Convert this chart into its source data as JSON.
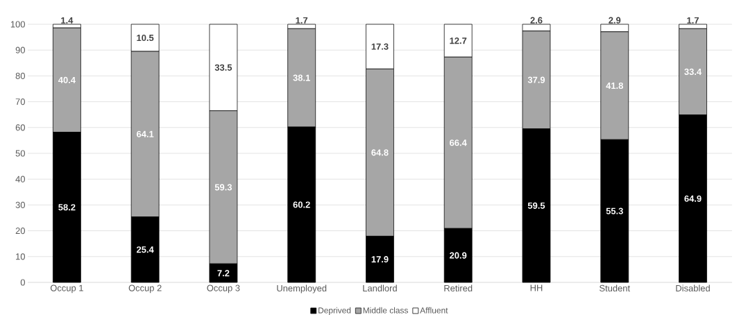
{
  "chart_data": {
    "type": "bar",
    "stacked": true,
    "categories": [
      "Occup 1",
      "Occup 2",
      "Occup 3",
      "Unemployed",
      "Landlord",
      "Retired",
      "HH",
      "Student",
      "Disabled"
    ],
    "series": [
      {
        "name": "Deprived",
        "color": "#000000",
        "values": [
          58.2,
          25.4,
          7.2,
          60.2,
          17.9,
          20.9,
          59.5,
          55.3,
          64.9
        ]
      },
      {
        "name": "Middle class",
        "color": "#a6a6a6",
        "values": [
          40.4,
          64.1,
          59.3,
          38.1,
          64.8,
          66.4,
          37.9,
          41.8,
          33.4
        ]
      },
      {
        "name": "Affluent",
        "color": "#ffffff",
        "values": [
          1.4,
          10.5,
          33.5,
          1.7,
          17.3,
          12.7,
          2.6,
          2.9,
          1.7
        ]
      }
    ],
    "ylim": [
      0,
      100
    ],
    "yticks": [
      0,
      10,
      20,
      30,
      40,
      50,
      60,
      70,
      80,
      90,
      100
    ],
    "grid": "y",
    "legend": "bottom",
    "data_labels": true
  }
}
